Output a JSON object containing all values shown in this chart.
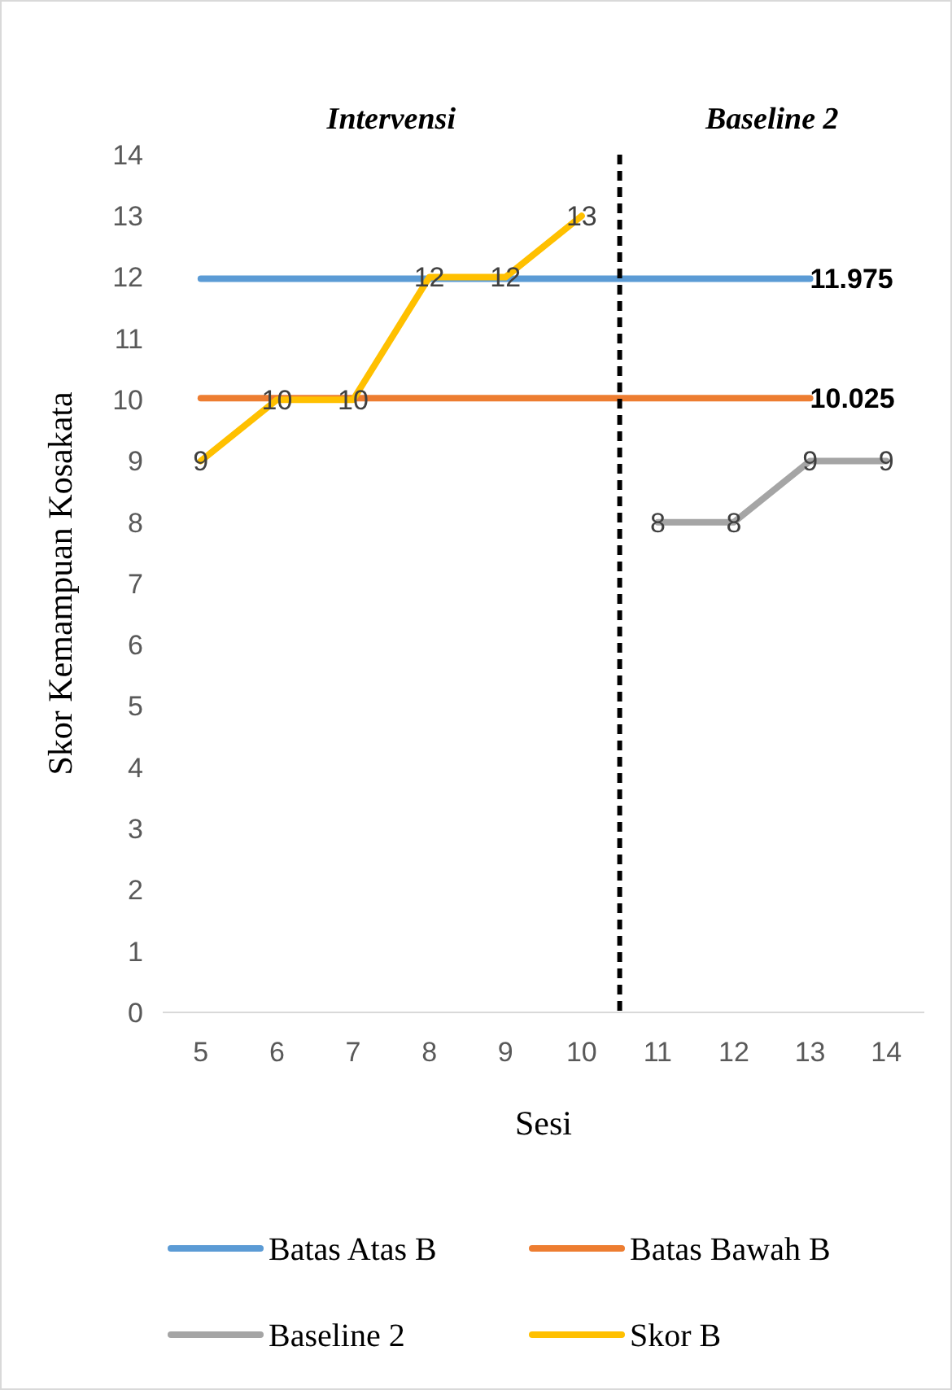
{
  "chart_data": {
    "type": "line",
    "ylabel": "Skor Kemampuan Kosakata",
    "xlabel": "Sesi",
    "xlim": [
      4.5,
      14.5
    ],
    "xticks": [
      5,
      6,
      7,
      8,
      9,
      10,
      11,
      12,
      13,
      14
    ],
    "ylim": [
      0,
      14
    ],
    "yticks": [
      0,
      1,
      2,
      3,
      4,
      5,
      6,
      7,
      8,
      9,
      10,
      11,
      12,
      13,
      14
    ],
    "grid": false,
    "legend": "bottom",
    "marker": "none",
    "line_style": "solid",
    "series": [
      {
        "name": "Batas Atas B",
        "color": "#5b9bd5",
        "x": [
          5,
          6,
          7,
          8,
          9,
          10,
          11,
          12,
          13
        ],
        "values": [
          11.975,
          11.975,
          11.975,
          11.975,
          11.975,
          11.975,
          11.975,
          11.975,
          11.975
        ],
        "value_labels": [
          null,
          null,
          null,
          null,
          null,
          null,
          null,
          null,
          "11.975"
        ]
      },
      {
        "name": "Batas Bawah B",
        "color": "#ed7d31",
        "x": [
          5,
          6,
          7,
          8,
          9,
          10,
          11,
          12,
          13
        ],
        "values": [
          10.025,
          10.025,
          10.025,
          10.025,
          10.025,
          10.025,
          10.025,
          10.025,
          10.025
        ],
        "value_labels": [
          null,
          null,
          null,
          null,
          null,
          null,
          null,
          null,
          "10.025"
        ]
      },
      {
        "name": "Baseline 2",
        "color": "#a5a5a5",
        "x": [
          11,
          12,
          13,
          14
        ],
        "values": [
          8,
          8,
          9,
          9
        ],
        "value_labels": [
          "8",
          "8",
          "9",
          "9"
        ]
      },
      {
        "name": "Skor B",
        "color": "#ffc000",
        "x": [
          5,
          6,
          7,
          8,
          9,
          10
        ],
        "values": [
          9,
          10,
          10,
          12,
          12,
          13
        ],
        "value_labels": [
          "9",
          "10",
          "10",
          "12",
          "12",
          "13"
        ]
      }
    ],
    "ref_lines": [
      {
        "axis": "x",
        "value": 10.5,
        "color": "#000000",
        "line_style": "dashed"
      }
    ],
    "annotations": [
      "Intervensi",
      "Baseline 2"
    ]
  }
}
